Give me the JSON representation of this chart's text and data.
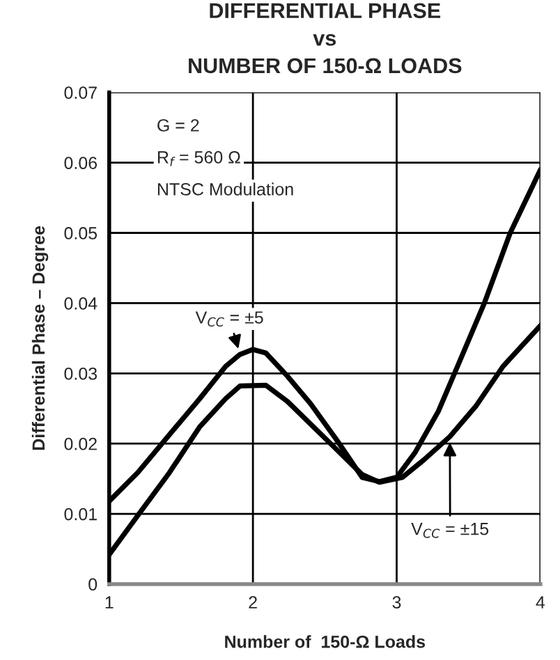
{
  "chart_data": {
    "type": "line",
    "title": "DIFFERENTIAL PHASE\nvs\nNUMBER OF 150-Ω LOADS",
    "xlabel": "Number of  150-Ω Loads",
    "ylabel": "Differential Phase – Degree",
    "xlim": [
      1,
      4
    ],
    "xticks": [
      1,
      2,
      3,
      4
    ],
    "ylim": [
      0,
      0.07
    ],
    "yticks": [
      0,
      0.01,
      0.02,
      0.03,
      0.04,
      0.05,
      0.06,
      0.07
    ],
    "grid": true,
    "legend": false,
    "marker": "none",
    "line_style": "solid",
    "annotations": [
      "G = 2",
      "R$_{f}$ = 560 Ω",
      "NTSC Modulation"
    ],
    "series": [
      {
        "name": "V$_{CC}$ = ±5",
        "color": "#000000",
        "x": [
          1,
          1.2,
          1.42,
          1.63,
          1.81,
          1.91,
          2.0,
          2.09,
          2.24,
          2.4,
          2.58,
          2.76,
          2.88,
          3.0,
          3.13,
          3.29,
          3.44,
          3.61,
          3.79,
          4.0
        ],
        "values": [
          0.0118,
          0.0159,
          0.0213,
          0.0264,
          0.031,
          0.0327,
          0.0334,
          0.0329,
          0.0296,
          0.0257,
          0.0206,
          0.0152,
          0.0146,
          0.0152,
          0.0188,
          0.0246,
          0.0318,
          0.04,
          0.05,
          0.059
        ]
      },
      {
        "name": "V$_{CC}$ = ±15",
        "color": "#000000",
        "x": [
          1,
          1.2,
          1.42,
          1.63,
          1.81,
          1.91,
          2.09,
          2.24,
          2.4,
          2.58,
          2.76,
          2.88,
          3.04,
          3.19,
          3.37,
          3.55,
          3.74,
          4.0
        ],
        "values": [
          0.0042,
          0.0098,
          0.0159,
          0.0224,
          0.0264,
          0.0282,
          0.0283,
          0.026,
          0.0228,
          0.0192,
          0.0156,
          0.0145,
          0.0152,
          0.0177,
          0.021,
          0.0253,
          0.031,
          0.0368
        ]
      }
    ]
  }
}
